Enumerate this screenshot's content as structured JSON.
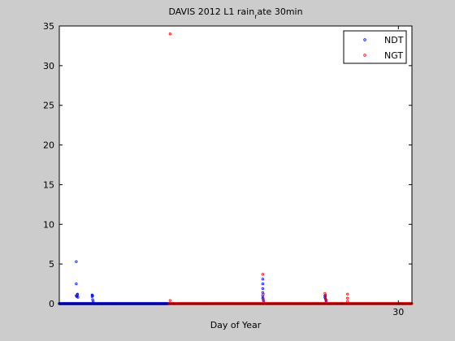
{
  "chart_data": {
    "type": "scatter",
    "title_main": "DAVIS 2012 L1 rain",
    "title_sub": "r",
    "title_tail": "ate 30min",
    "xlabel": "Day of Year",
    "ylabel": "",
    "xlim": [
      0,
      31.2
    ],
    "ylim": [
      0,
      35
    ],
    "xticks": [
      30
    ],
    "yticks": [
      0,
      5,
      10,
      15,
      20,
      25,
      30,
      35
    ],
    "legend_placement": "top-right",
    "grid": false,
    "series": [
      {
        "name": "NDT",
        "color": "#0000ff",
        "points": [
          [
            1.5,
            5.3
          ],
          [
            1.5,
            2.5
          ],
          [
            1.5,
            1.0
          ],
          [
            1.55,
            0.9
          ],
          [
            1.6,
            1.1
          ],
          [
            1.6,
            1.2
          ],
          [
            1.65,
            0.8
          ],
          [
            2.9,
            1.1
          ],
          [
            2.9,
            0.9
          ],
          [
            2.95,
            1.0
          ],
          [
            2.95,
            0.5
          ],
          [
            3.0,
            0.3
          ],
          [
            3.0,
            0.1
          ],
          [
            18.0,
            3.1
          ],
          [
            18.0,
            2.5
          ],
          [
            18.0,
            1.9
          ],
          [
            18.0,
            1.4
          ],
          [
            18.0,
            1.0
          ],
          [
            18.0,
            0.7
          ],
          [
            18.05,
            0.4
          ],
          [
            23.5,
            1.0
          ],
          [
            23.5,
            0.8
          ],
          [
            23.55,
            0.6
          ],
          [
            23.6,
            0.4
          ],
          [
            23.6,
            0.2
          ]
        ],
        "baseline_range": [
          0,
          9.7
        ]
      },
      {
        "name": "NGT",
        "color": "#ff0000",
        "points": [
          [
            9.8,
            34.0
          ],
          [
            9.8,
            0.4
          ],
          [
            18.0,
            3.7
          ],
          [
            18.05,
            1.2
          ],
          [
            18.05,
            0.6
          ],
          [
            18.1,
            0.3
          ],
          [
            23.5,
            1.3
          ],
          [
            23.55,
            1.1
          ],
          [
            23.55,
            0.9
          ],
          [
            23.6,
            0.5
          ],
          [
            25.5,
            1.2
          ],
          [
            25.5,
            0.7
          ],
          [
            25.5,
            0.3
          ]
        ],
        "baseline_range": [
          9.7,
          31.2
        ]
      }
    ]
  }
}
